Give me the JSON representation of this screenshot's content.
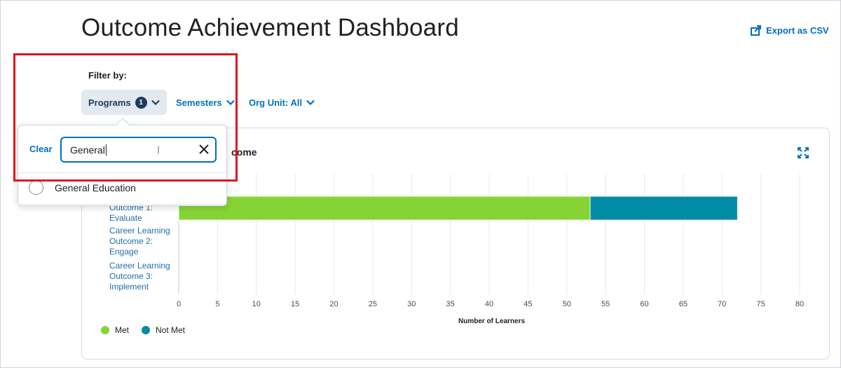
{
  "header": {
    "title": "Outcome Achievement Dashboard",
    "export_label": "Export as CSV"
  },
  "filters": {
    "label": "Filter by:",
    "programs": {
      "label": "Programs",
      "count": "1"
    },
    "semesters": {
      "label": "Semesters"
    },
    "org_unit": {
      "label": "Org Unit: All"
    }
  },
  "popover": {
    "clear_label": "Clear",
    "search_value": "General",
    "options": [
      "General Education"
    ]
  },
  "card": {
    "title_fragment": "come"
  },
  "colors": {
    "met": "#86d336",
    "not_met": "#028ca6",
    "accent": "#006fbf"
  },
  "chart_data": {
    "type": "bar",
    "orientation": "horizontal",
    "stacked": true,
    "category_labels": [
      [
        "Outcome 1:",
        "Evaluate"
      ],
      [
        "Career Learning",
        "Outcome 2:",
        "Engage"
      ],
      [
        "Career Learning",
        "Outcome 3:",
        "Implement"
      ]
    ],
    "series": [
      {
        "name": "Met",
        "values": [
          53,
          0,
          0
        ]
      },
      {
        "name": "Not Met",
        "values": [
          19,
          0,
          0
        ]
      }
    ],
    "xlabel": "Number of Learners",
    "xlim": [
      0,
      80
    ],
    "xticks": [
      0,
      5,
      10,
      15,
      20,
      25,
      30,
      35,
      40,
      45,
      50,
      55,
      60,
      65,
      70,
      75,
      80
    ],
    "legend": "bottom-left",
    "grid": true
  }
}
